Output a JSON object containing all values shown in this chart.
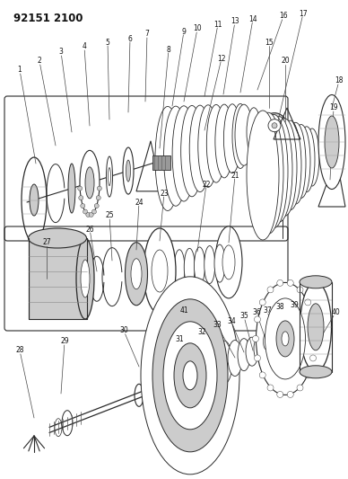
{
  "title": "92151 2100",
  "bg_color": "#ffffff",
  "line_color": "#2a2a2a",
  "gray1": "#999999",
  "gray2": "#cccccc",
  "gray3": "#555555",
  "fig_width": 3.88,
  "fig_height": 5.33,
  "dpi": 100
}
